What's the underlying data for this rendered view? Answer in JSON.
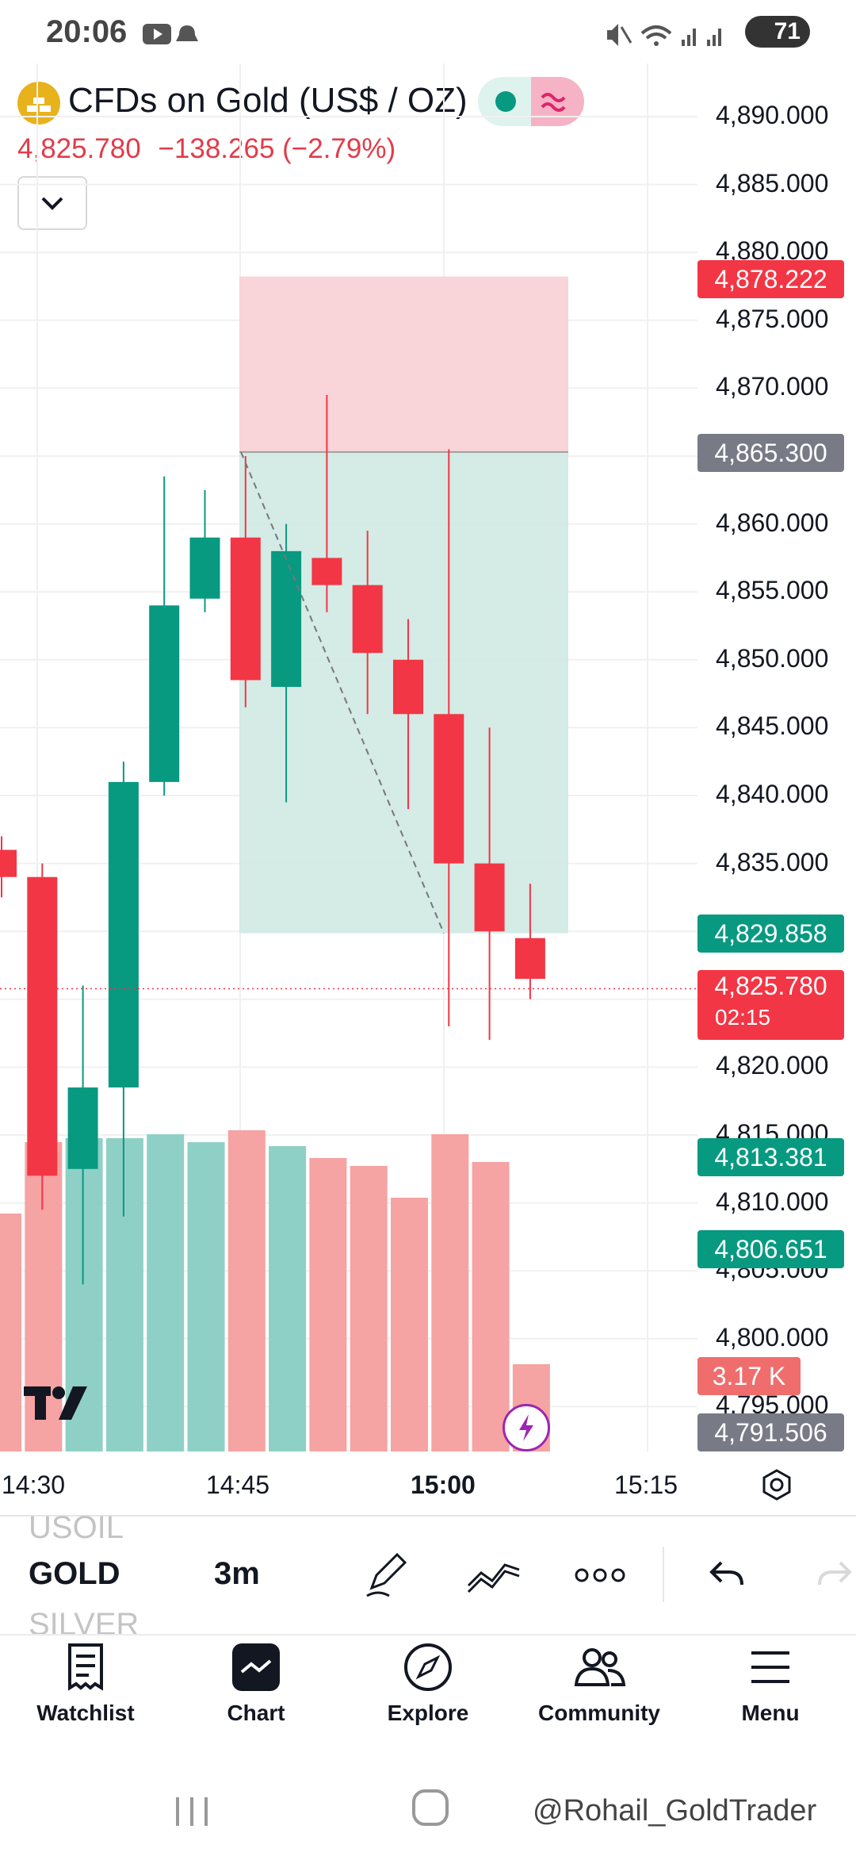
{
  "status_bar": {
    "time": "20:06",
    "battery": "71"
  },
  "symbol": {
    "title": "CFDs on Gold (US$ / OZ)",
    "last_price": "4,825.780",
    "change": "−138.265 (−2.79%)"
  },
  "chart_data": {
    "type": "candlestick",
    "y_ticks": [
      "4,890.000",
      "4,885.000",
      "4,880.000",
      "4,875.000",
      "4,870.000",
      "4,865.000",
      "4,860.000",
      "4,855.000",
      "4,850.000",
      "4,845.000",
      "4,840.000",
      "4,835.000",
      "4,830.000",
      "4,825.000",
      "4,820.000",
      "4,815.000",
      "4,810.000",
      "4,805.000",
      "4,800.000",
      "4,795.000"
    ],
    "x_ticks": [
      {
        "label": "14:30",
        "bold": false
      },
      {
        "label": "14:45",
        "bold": false
      },
      {
        "label": "15:00",
        "bold": true
      },
      {
        "label": "15:15",
        "bold": false
      }
    ],
    "price_tags": [
      {
        "value": "4,878.222",
        "color": "#f23645"
      },
      {
        "value": "4,865.300",
        "color": "#787b86"
      },
      {
        "value": "4,829.858",
        "color": "#089981"
      },
      {
        "value": "4,825.780",
        "sub": "02:15",
        "color": "#f23645"
      },
      {
        "value": "4,813.381",
        "color": "#089981"
      },
      {
        "value": "4,806.651",
        "color": "#089981"
      },
      {
        "value": "3.17 K",
        "color": "#f06d6d"
      },
      {
        "value": "4,791.506",
        "color": "#787b86"
      }
    ],
    "candles": [
      {
        "open": 4836.0,
        "close": 4834.0,
        "high": 4837.0,
        "low": 4832.5
      },
      {
        "open": 4834.0,
        "close": 4812.0,
        "high": 4835.0,
        "low": 4809.5
      },
      {
        "open": 4812.5,
        "close": 4818.5,
        "high": 4826.0,
        "low": 4804.0
      },
      {
        "open": 4818.5,
        "close": 4841.0,
        "high": 4842.5,
        "low": 4809.0
      },
      {
        "open": 4841.0,
        "close": 4854.0,
        "high": 4863.5,
        "low": 4840.0
      },
      {
        "open": 4854.5,
        "close": 4859.0,
        "high": 4862.5,
        "low": 4853.5
      },
      {
        "open": 4859.0,
        "close": 4848.5,
        "high": 4865.0,
        "low": 4846.5
      },
      {
        "open": 4848.0,
        "close": 4858.0,
        "high": 4860.0,
        "low": 4839.5
      },
      {
        "open": 4857.5,
        "close": 4855.5,
        "high": 4869.5,
        "low": 4853.5
      },
      {
        "open": 4855.5,
        "close": 4850.5,
        "high": 4859.5,
        "low": 4846.0
      },
      {
        "open": 4850.0,
        "close": 4846.0,
        "high": 4853.0,
        "low": 4839.0
      },
      {
        "open": 4846.0,
        "close": 4835.0,
        "high": 4865.5,
        "low": 4823.0
      },
      {
        "open": 4835.0,
        "close": 4830.0,
        "high": 4845.0,
        "low": 4822.0
      },
      {
        "open": 4829.5,
        "close": 4826.5,
        "high": 4833.5,
        "low": 4825.0
      }
    ],
    "volumes": [
      {
        "value": 0.6,
        "dir": "down"
      },
      {
        "value": 0.78,
        "dir": "down"
      },
      {
        "value": 0.79,
        "dir": "up"
      },
      {
        "value": 0.79,
        "dir": "up"
      },
      {
        "value": 0.8,
        "dir": "up"
      },
      {
        "value": 0.78,
        "dir": "up"
      },
      {
        "value": 0.81,
        "dir": "down"
      },
      {
        "value": 0.77,
        "dir": "up"
      },
      {
        "value": 0.74,
        "dir": "down"
      },
      {
        "value": 0.72,
        "dir": "down"
      },
      {
        "value": 0.64,
        "dir": "down"
      },
      {
        "value": 0.8,
        "dir": "down"
      },
      {
        "value": 0.73,
        "dir": "down"
      },
      {
        "value": 0.22,
        "dir": "down"
      }
    ],
    "position_tool": {
      "stop": 4878.222,
      "entry": 4865.3,
      "target": 4829.858
    },
    "current_price": 4825.78
  },
  "toolbar": {
    "symbols": [
      "USOIL",
      "GOLD",
      "SILVER"
    ],
    "interval": "3m"
  },
  "nav": [
    "Watchlist",
    "Chart",
    "Explore",
    "Community",
    "Menu"
  ],
  "watermark": "@Rohail_GoldTrader",
  "colors": {
    "up": "#089981",
    "down": "#f23645",
    "up_vol": "#8fd0c6",
    "down_vol": "#f5a3a3"
  }
}
